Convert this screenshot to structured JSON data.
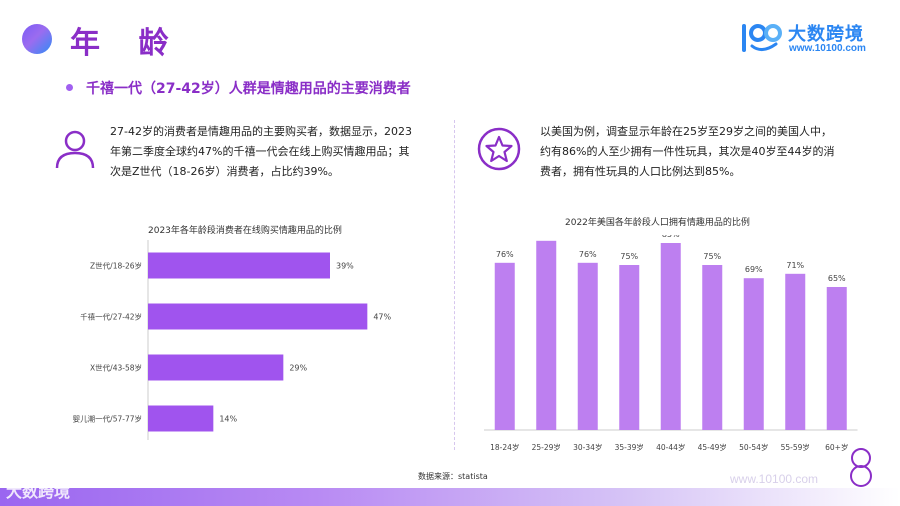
{
  "header": {
    "title": "年 龄",
    "brand_cn": "大数跨境",
    "brand_url": "www.10100.com"
  },
  "subtitle": "千禧一代（27-42岁）人群是情趣用品的主要消费者",
  "left_panel": {
    "icon": "user-icon",
    "text_lines": [
      "27-42岁的消费者是情趣用品的主要购买者，数据显示，2023",
      "年第二季度全球约47%的千禧一代会在线上购买情趣用品；其",
      "次是Z世代（18-26岁）消费者，占比约39%。"
    ]
  },
  "right_panel": {
    "icon": "star-icon",
    "text_lines": [
      "以美国为例，调查显示年龄在25岁至29岁之间的美国人中，",
      "约有86%的人至少拥有一件性玩具，其次是40岁至44岁的消",
      "费者，拥有性玩具的人口比例达到85%。"
    ]
  },
  "chart_data": [
    {
      "type": "bar",
      "orientation": "horizontal",
      "title": "2023年各年龄段消费者在线购买情趣用品的比例",
      "categories": [
        "Z世代/18-26岁",
        "千禧一代/27-42岁",
        "X世代/43-58岁",
        "婴儿潮一代/57-77岁"
      ],
      "values": [
        39,
        47,
        29,
        14
      ],
      "value_labels": [
        "39%",
        "47%",
        "29%",
        "14%"
      ],
      "xlim": [
        0,
        60
      ],
      "color": "#a054ee"
    },
    {
      "type": "bar",
      "orientation": "vertical",
      "title": "2022年美国各年龄段人口拥有情趣用品的比例",
      "categories": [
        "18-24岁",
        "25-29岁",
        "30-34岁",
        "35-39岁",
        "40-44岁",
        "45-49岁",
        "50-54岁",
        "55-59岁",
        "60+岁"
      ],
      "values": [
        76,
        86,
        76,
        75,
        85,
        75,
        69,
        71,
        65
      ],
      "value_labels": [
        "76%",
        "86%",
        "76%",
        "75%",
        "85%",
        "75%",
        "69%",
        "71%",
        "65%"
      ],
      "ylim": [
        0,
        100
      ],
      "color": "#bd7ff0"
    }
  ],
  "source": "数据来源：statista",
  "footer": {
    "brand": "大数跨境",
    "url": "www.10100.com"
  },
  "colors": {
    "accent": "#8a2ec7",
    "brand_blue": "#2b86f2"
  }
}
